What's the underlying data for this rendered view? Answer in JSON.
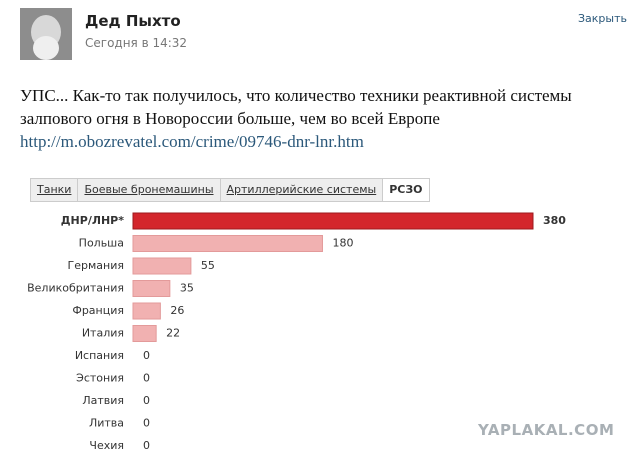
{
  "post": {
    "author": "Дед Пыхто",
    "time": "Сегодня в 14:32",
    "close": "Закрыть",
    "text_lines": [
      "УПС... Как-то так получилось, что количество техники реактивной системы",
      "залпового огня в Новороссии больше, чем во всей Европе"
    ],
    "link": "http://m.obozrevatel.com/crime/09746-dnr-lnr.htm"
  },
  "tabs": [
    "Танки",
    "Боевые бронемашины",
    "Артиллерийские системы",
    "РСЗО"
  ],
  "chart_data": {
    "type": "bar",
    "orientation": "horizontal",
    "categories": [
      "ДНР/ЛНР*",
      "Польша",
      "Германия",
      "Великобритания",
      "Франция",
      "Италия",
      "Испания",
      "Эстония",
      "Латвия",
      "Литва",
      "Чехия"
    ],
    "values": [
      380,
      180,
      55,
      35,
      26,
      22,
      0,
      0,
      0,
      0,
      0
    ],
    "colors": [
      "#d3262c",
      "#f1b1b1",
      "#f1b1b1",
      "#f1b1b1",
      "#f1b1b1",
      "#f1b1b1",
      "#f1b1b1",
      "#f1b1b1",
      "#f1b1b1",
      "#f1b1b1",
      "#f1b1b1"
    ]
  },
  "watermark": "YAPLAKAL.COM"
}
